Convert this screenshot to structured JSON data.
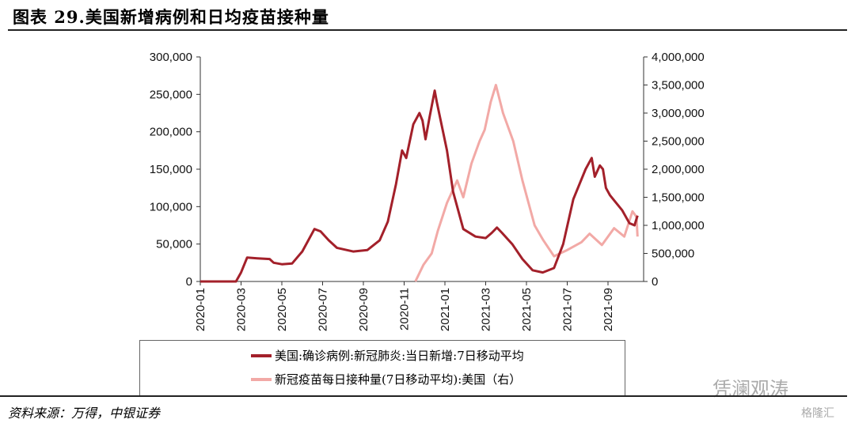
{
  "title": "图表 29.美国新增病例和日均疫苗接种量",
  "source": "资料来源：万得，中银证券",
  "watermarks": [
    "凭澜观涛",
    "格隆汇"
  ],
  "chart_data": {
    "type": "line",
    "title": "图表 29.美国新增病例和日均疫苗接种量",
    "x_ticks": [
      "2020-01",
      "2020-03",
      "2020-05",
      "2020-07",
      "2020-09",
      "2020-11",
      "2021-01",
      "2021-03",
      "2021-05",
      "2021-07",
      "2021-09"
    ],
    "y_left": {
      "ylim": [
        0,
        300000
      ],
      "ticks": [
        "0",
        "50,000",
        "100,000",
        "150,000",
        "200,000",
        "250,000",
        "300,000"
      ]
    },
    "y_right": {
      "ylim": [
        0,
        4000000
      ],
      "ticks": [
        "0",
        "500,000",
        "1,000,000",
        "1,500,000",
        "2,000,000",
        "2,500,000",
        "3,000,000",
        "3,500,000",
        "4,000,000"
      ]
    },
    "legend_position": "bottom",
    "series": [
      {
        "name": "美国:确诊病例:新冠肺炎:当日新增:7日移动平均",
        "axis": "left",
        "color": "#A3202A",
        "x": [
          0,
          1.75,
          2.0,
          2.3,
          2.8,
          3.4,
          3.6,
          4.0,
          4.5,
          5.0,
          5.6,
          5.9,
          6.3,
          6.7,
          7.5,
          8.2,
          8.8,
          9.2,
          9.6,
          9.9,
          10.1,
          10.45,
          10.75,
          10.9,
          11.05,
          11.25,
          11.5,
          11.6,
          12.1,
          12.4,
          12.9,
          13.5,
          14.0,
          14.3,
          14.55,
          14.8,
          15.3,
          15.8,
          16.3,
          16.8,
          17.35,
          17.8,
          18.3,
          18.9,
          19.2,
          19.35,
          19.6,
          19.75,
          19.9,
          20.1,
          20.7,
          21.05,
          21.3,
          21.45
        ],
        "y": [
          0,
          0,
          12000,
          32000,
          31000,
          30000,
          25000,
          23000,
          24000,
          40000,
          70000,
          67000,
          55000,
          45000,
          40000,
          42000,
          55000,
          80000,
          130000,
          175000,
          165000,
          210000,
          225000,
          215000,
          190000,
          220000,
          255000,
          240000,
          175000,
          120000,
          70000,
          60000,
          58000,
          65000,
          72000,
          65000,
          50000,
          30000,
          15000,
          12000,
          18000,
          50000,
          110000,
          150000,
          165000,
          140000,
          155000,
          150000,
          125000,
          115000,
          95000,
          78000,
          75000,
          88000
        ]
      },
      {
        "name": "新冠疫苗每日接种量(7日移动平均):美国（右）",
        "axis": "right",
        "color": "#F2A9A6",
        "x": [
          10.55,
          10.95,
          11.35,
          11.65,
          12.1,
          12.6,
          12.9,
          13.3,
          13.7,
          13.95,
          14.25,
          14.5,
          14.85,
          15.35,
          15.8,
          16.4,
          16.8,
          17.35,
          17.95,
          18.7,
          19.1,
          19.7,
          20.3,
          20.8,
          21.2,
          21.4,
          21.45
        ],
        "y": [
          0,
          300000,
          500000,
          900000,
          1400000,
          1800000,
          1500000,
          2100000,
          2500000,
          2700000,
          3200000,
          3500000,
          3000000,
          2500000,
          1800000,
          1000000,
          750000,
          450000,
          550000,
          700000,
          850000,
          650000,
          950000,
          800000,
          1250000,
          1150000,
          800000
        ]
      }
    ]
  }
}
